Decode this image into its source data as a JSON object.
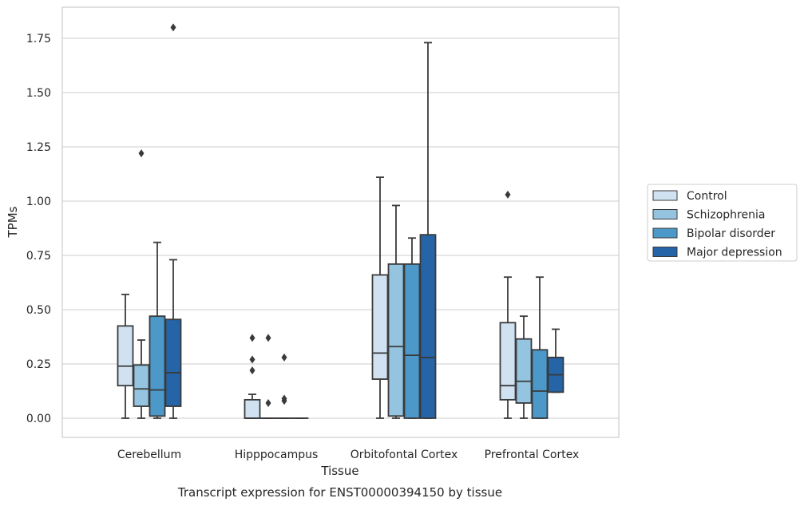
{
  "chart_data": {
    "type": "box",
    "title": "",
    "caption": "Transcript expression for ENST00000394150 by tissue",
    "xlabel": "Tissue",
    "ylabel": "TPMs",
    "ylim": [
      -0.09,
      1.89
    ],
    "yticks": [
      0.0,
      0.25,
      0.5,
      0.75,
      1.0,
      1.25,
      1.5,
      1.75
    ],
    "ytick_labels": [
      "0.00",
      "0.25",
      "0.50",
      "0.75",
      "1.00",
      "1.25",
      "1.50",
      "1.75"
    ],
    "grid": "horizontal",
    "legend_placement": "right",
    "categories": [
      "Cerebellum",
      "Hipppocampus",
      "Orbitofontal Cortex",
      "Prefrontal Cortex"
    ],
    "series": [
      {
        "name": "Control",
        "color": "#d0e2f1",
        "boxes": [
          {
            "whisker_low": 0.0,
            "q1": 0.15,
            "median": 0.24,
            "q3": 0.425,
            "whisker_high": 0.57,
            "outliers": []
          },
          {
            "whisker_low": 0.0,
            "q1": 0.0,
            "median": 0.0,
            "q3": 0.085,
            "whisker_high": 0.11,
            "outliers": [
              0.37,
              0.27,
              0.22
            ]
          },
          {
            "whisker_low": 0.0,
            "q1": 0.18,
            "median": 0.3,
            "q3": 0.66,
            "whisker_high": 1.11,
            "outliers": []
          },
          {
            "whisker_low": 0.0,
            "q1": 0.085,
            "median": 0.15,
            "q3": 0.44,
            "whisker_high": 0.65,
            "outliers": [
              1.03
            ]
          }
        ]
      },
      {
        "name": "Schizophrenia",
        "color": "#94c4df",
        "boxes": [
          {
            "whisker_low": 0.0,
            "q1": 0.055,
            "median": 0.135,
            "q3": 0.245,
            "whisker_high": 0.36,
            "outliers": [
              1.22
            ]
          },
          {
            "whisker_low": 0.0,
            "q1": 0.0,
            "median": 0.0,
            "q3": 0.0,
            "whisker_high": 0.0,
            "outliers": [
              0.37,
              0.07
            ]
          },
          {
            "whisker_low": 0.0,
            "q1": 0.01,
            "median": 0.33,
            "q3": 0.71,
            "whisker_high": 0.98,
            "outliers": []
          },
          {
            "whisker_low": 0.0,
            "q1": 0.07,
            "median": 0.17,
            "q3": 0.365,
            "whisker_high": 0.47,
            "outliers": []
          }
        ]
      },
      {
        "name": "Bipolar disorder",
        "color": "#4b98c9",
        "boxes": [
          {
            "whisker_low": 0.0,
            "q1": 0.01,
            "median": 0.13,
            "q3": 0.47,
            "whisker_high": 0.81,
            "outliers": []
          },
          {
            "whisker_low": 0.0,
            "q1": 0.0,
            "median": 0.0,
            "q3": 0.0,
            "whisker_high": 0.0,
            "outliers": [
              0.28,
              0.09,
              0.08
            ]
          },
          {
            "whisker_low": 0.0,
            "q1": 0.0,
            "median": 0.29,
            "q3": 0.71,
            "whisker_high": 0.83,
            "outliers": []
          },
          {
            "whisker_low": 0.0,
            "q1": 0.0,
            "median": 0.125,
            "q3": 0.315,
            "whisker_high": 0.65,
            "outliers": []
          }
        ]
      },
      {
        "name": "Major depression",
        "color": "#2564a7",
        "boxes": [
          {
            "whisker_low": 0.0,
            "q1": 0.055,
            "median": 0.21,
            "q3": 0.455,
            "whisker_high": 0.73,
            "outliers": [
              1.8
            ]
          },
          {
            "whisker_low": 0.0,
            "q1": 0.0,
            "median": 0.0,
            "q3": 0.0,
            "whisker_high": 0.0,
            "outliers": []
          },
          {
            "whisker_low": 0.0,
            "q1": 0.0,
            "median": 0.28,
            "q3": 0.845,
            "whisker_high": 1.73,
            "outliers": []
          },
          {
            "whisker_low": 0.12,
            "q1": 0.12,
            "median": 0.2,
            "q3": 0.28,
            "whisker_high": 0.41,
            "outliers": []
          }
        ]
      }
    ]
  },
  "colors": {
    "grid": "#cccccc",
    "frame": "#cccccc",
    "box_edge": "#3a3a3a"
  }
}
